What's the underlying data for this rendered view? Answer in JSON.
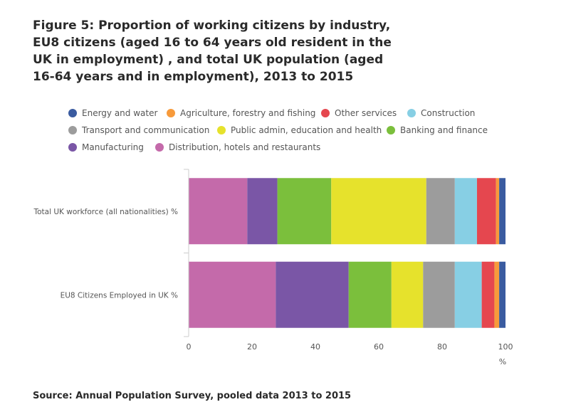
{
  "figure": {
    "title": "Figure 5: Proportion of working citizens by industry, EU8 citizens (aged 16 to 64 years old resident in the UK in employment) , and total UK population (aged 16-64 years and in employment), 2013 to 2015",
    "source": "Source: Annual Population Survey, pooled data 2013 to 2015"
  },
  "legend": {
    "items": [
      {
        "label": "Energy and water",
        "color": "#3a5ba0"
      },
      {
        "label": "Agriculture, forestry and fishing",
        "color": "#f79a3b"
      },
      {
        "label": "Other services",
        "color": "#e5474f"
      },
      {
        "label": "Construction",
        "color": "#87cfe4"
      },
      {
        "label": "Transport and communication",
        "color": "#9c9c9c"
      },
      {
        "label": "Public admin, education and health",
        "color": "#e6e22c"
      },
      {
        "label": "Banking and finance",
        "color": "#7bbf3c"
      },
      {
        "label": "Manufacturing",
        "color": "#7a56a6"
      },
      {
        "label": "Distribution, hotels and restaurants",
        "color": "#c46aaa"
      }
    ]
  },
  "chart_data": {
    "type": "bar",
    "orientation": "horizontal",
    "stacked": true,
    "categories": [
      "Total UK workforce (all nationalities) %",
      "EU8 Citizens Employed in UK %"
    ],
    "series": [
      {
        "name": "Distribution, hotels and restaurants",
        "color": "#c46aaa",
        "values": [
          18.5,
          27.5
        ]
      },
      {
        "name": "Manufacturing",
        "color": "#7a56a6",
        "values": [
          9.5,
          23.0
        ]
      },
      {
        "name": "Banking and finance",
        "color": "#7bbf3c",
        "values": [
          17.0,
          13.5
        ]
      },
      {
        "name": "Public admin, education and health",
        "color": "#e6e22c",
        "values": [
          30.0,
          10.0
        ]
      },
      {
        "name": "Transport and communication",
        "color": "#9c9c9c",
        "values": [
          9.0,
          10.0
        ]
      },
      {
        "name": "Construction",
        "color": "#87cfe4",
        "values": [
          7.0,
          8.5
        ]
      },
      {
        "name": "Other services",
        "color": "#e5474f",
        "values": [
          6.0,
          4.0
        ]
      },
      {
        "name": "Agriculture, forestry and fishing",
        "color": "#f79a3b",
        "values": [
          1.0,
          1.5
        ]
      },
      {
        "name": "Energy and water",
        "color": "#3a5ba0",
        "values": [
          2.0,
          2.0
        ]
      }
    ],
    "xlim": [
      0,
      100
    ],
    "xticks": [
      0,
      20,
      40,
      60,
      80,
      100
    ],
    "xlabel": "%",
    "grid": false
  }
}
